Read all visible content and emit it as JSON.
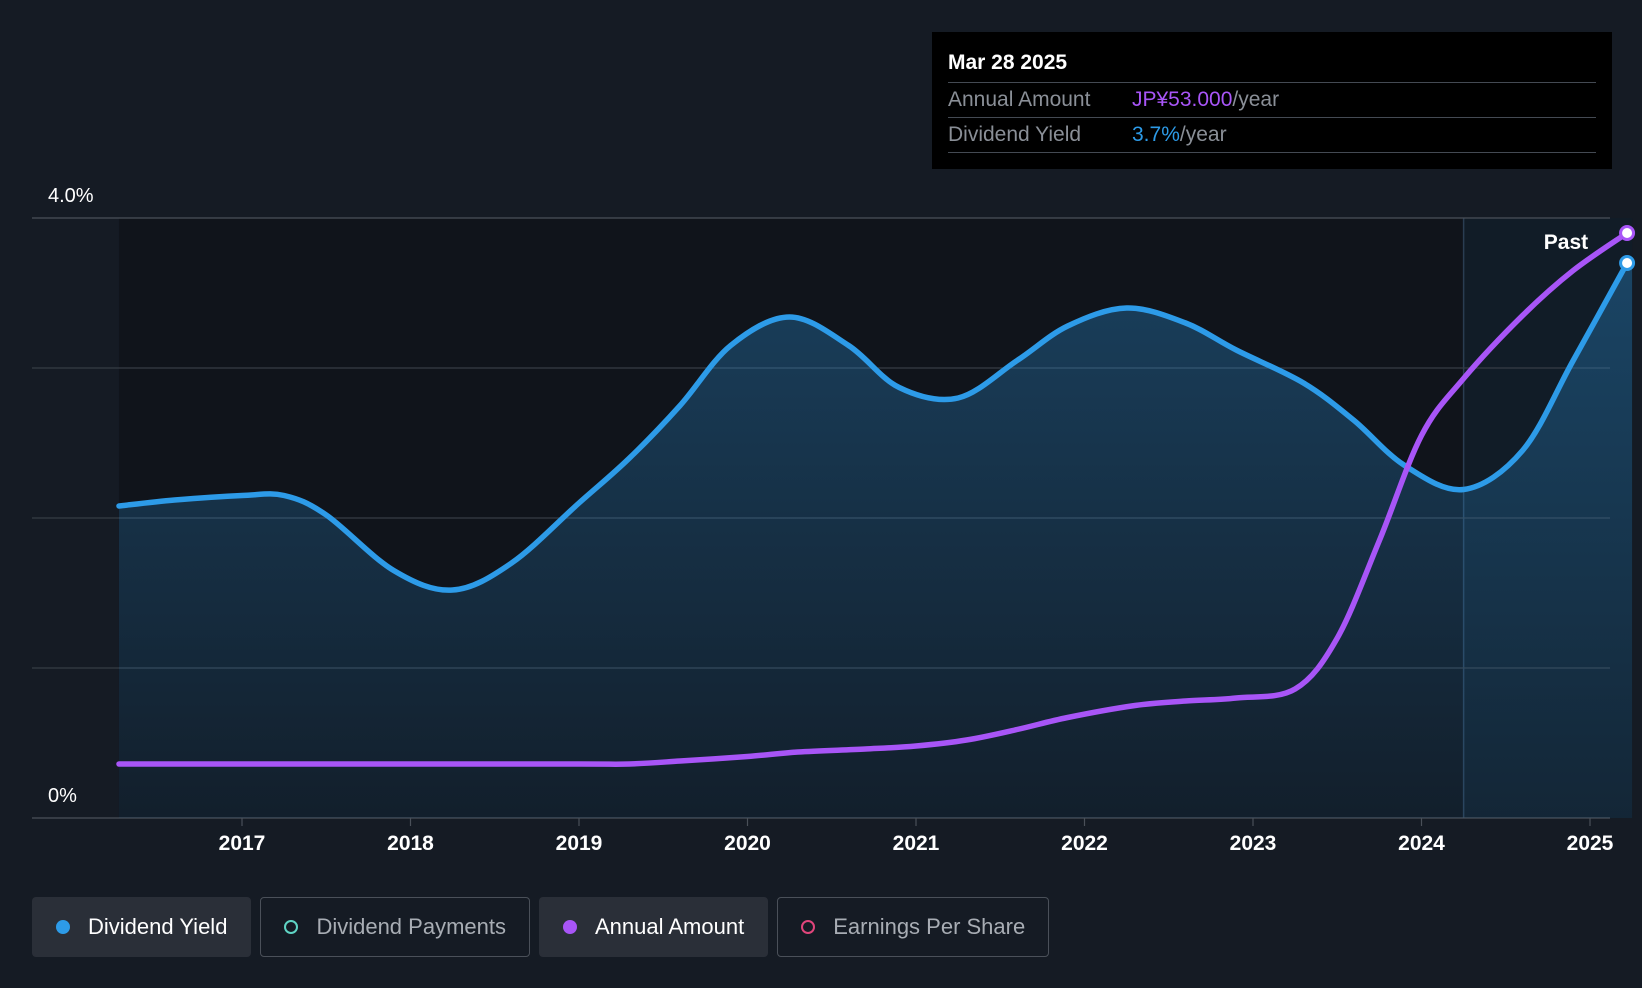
{
  "tooltip": {
    "date": "Mar 28 2025",
    "annual_amount_label": "Annual Amount",
    "annual_amount_value": "JP¥53.000",
    "annual_amount_unit": "/year",
    "dividend_yield_label": "Dividend Yield",
    "dividend_yield_value": "3.7%",
    "dividend_yield_unit": "/year"
  },
  "past_label": "Past",
  "legend": [
    {
      "label": "Dividend Yield",
      "active": true,
      "filled": true,
      "color": "#2d9be8"
    },
    {
      "label": "Dividend Payments",
      "active": false,
      "filled": false,
      "color": "#5fd4c4"
    },
    {
      "label": "Annual Amount",
      "active": true,
      "filled": true,
      "color": "#a855f7"
    },
    {
      "label": "Earnings Per Share",
      "active": false,
      "filled": false,
      "color": "#e0457b"
    }
  ],
  "colors": {
    "background": "#151b24",
    "yield_line": "#2d9be8",
    "amount_line": "#a855f7",
    "grid": "#363c45"
  },
  "chart_data": {
    "type": "line",
    "x_ticks": [
      "2017",
      "2018",
      "2019",
      "2020",
      "2021",
      "2022",
      "2023",
      "2024",
      "2025"
    ],
    "y_tick_labels": [
      "4.0%",
      "0%"
    ],
    "ylim": [
      0,
      4.0
    ],
    "xlim": [
      2015.9,
      2025.25
    ],
    "forecast_start": 2024.25,
    "series": [
      {
        "name": "Dividend Yield",
        "unit": "%",
        "color": "#2d9be8",
        "area": true,
        "points": [
          [
            2016.27,
            2.08
          ],
          [
            2016.6,
            2.12
          ],
          [
            2017.0,
            2.15
          ],
          [
            2017.25,
            2.15
          ],
          [
            2017.5,
            2.02
          ],
          [
            2017.9,
            1.65
          ],
          [
            2018.25,
            1.52
          ],
          [
            2018.6,
            1.7
          ],
          [
            2019.0,
            2.1
          ],
          [
            2019.3,
            2.4
          ],
          [
            2019.6,
            2.75
          ],
          [
            2019.9,
            3.15
          ],
          [
            2020.25,
            3.34
          ],
          [
            2020.6,
            3.15
          ],
          [
            2020.9,
            2.87
          ],
          [
            2021.25,
            2.8
          ],
          [
            2021.6,
            3.05
          ],
          [
            2021.9,
            3.28
          ],
          [
            2022.25,
            3.4
          ],
          [
            2022.6,
            3.3
          ],
          [
            2022.9,
            3.12
          ],
          [
            2023.3,
            2.9
          ],
          [
            2023.6,
            2.65
          ],
          [
            2023.9,
            2.35
          ],
          [
            2024.25,
            2.19
          ],
          [
            2024.6,
            2.45
          ],
          [
            2024.9,
            3.05
          ],
          [
            2025.22,
            3.7
          ]
        ]
      },
      {
        "name": "Annual Amount",
        "unit": "JP¥",
        "color": "#a855f7",
        "area": false,
        "points": [
          [
            2016.27,
            0.36
          ],
          [
            2017.0,
            0.36
          ],
          [
            2018.0,
            0.36
          ],
          [
            2019.0,
            0.36
          ],
          [
            2019.3,
            0.36
          ],
          [
            2019.6,
            0.38
          ],
          [
            2020.0,
            0.41
          ],
          [
            2020.3,
            0.44
          ],
          [
            2020.7,
            0.46
          ],
          [
            2021.0,
            0.48
          ],
          [
            2021.3,
            0.52
          ],
          [
            2021.6,
            0.59
          ],
          [
            2021.9,
            0.67
          ],
          [
            2022.3,
            0.75
          ],
          [
            2022.6,
            0.78
          ],
          [
            2022.9,
            0.8
          ],
          [
            2023.25,
            0.86
          ],
          [
            2023.5,
            1.2
          ],
          [
            2023.75,
            1.85
          ],
          [
            2024.0,
            2.55
          ],
          [
            2024.25,
            2.93
          ],
          [
            2024.6,
            3.35
          ],
          [
            2024.9,
            3.65
          ],
          [
            2025.22,
            3.9
          ]
        ]
      }
    ]
  }
}
